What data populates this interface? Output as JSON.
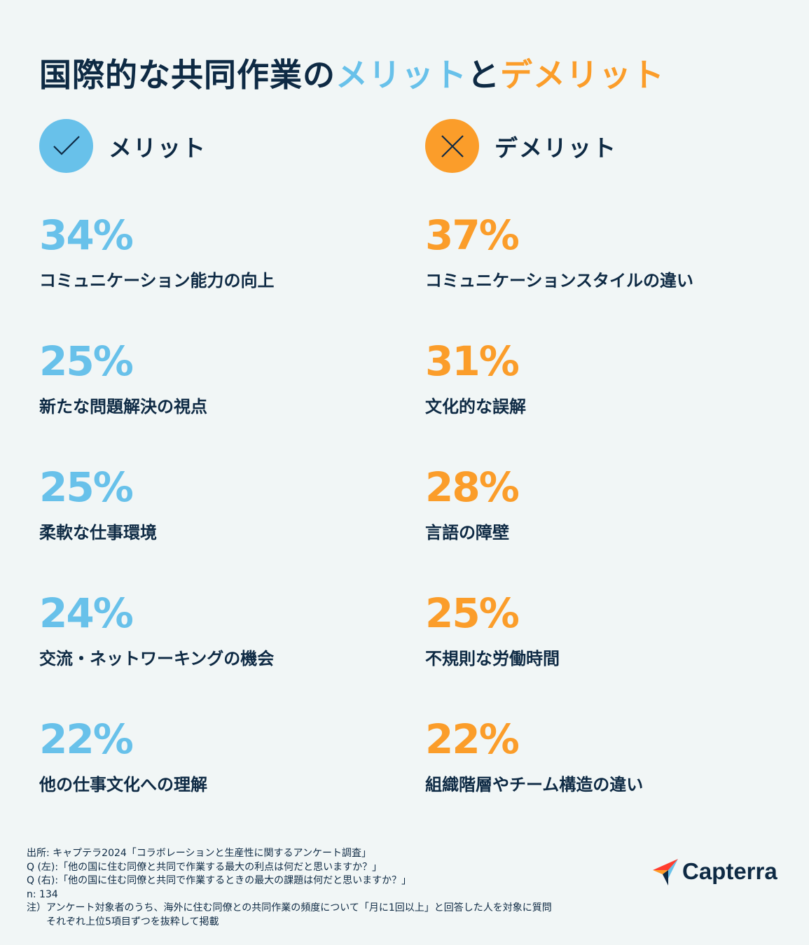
{
  "title": {
    "prefix": "国際的な共同作業の",
    "pros_word": "メリット",
    "connector": "と",
    "cons_word": "デメリット"
  },
  "colors": {
    "pros": "#68c1ea",
    "cons": "#fb9d2a",
    "text": "#0e2a44",
    "background": "#f1f6f6"
  },
  "pros": {
    "heading": "メリット",
    "icon": "check-icon"
  },
  "cons": {
    "heading": "デメリット",
    "icon": "x-icon"
  },
  "chart_data": {
    "type": "table",
    "unit": "%",
    "series": [
      {
        "name": "メリット",
        "items": [
          {
            "value": 34,
            "label": "34%",
            "category": "コミュニケーション能力の向上"
          },
          {
            "value": 25,
            "label": "25%",
            "category": "新たな問題解決の視点"
          },
          {
            "value": 25,
            "label": "25%",
            "category": "柔軟な仕事環境"
          },
          {
            "value": 24,
            "label": "24%",
            "category": "交流・ネットワーキングの機会"
          },
          {
            "value": 22,
            "label": "22%",
            "category": "他の仕事文化への理解"
          }
        ]
      },
      {
        "name": "デメリット",
        "items": [
          {
            "value": 37,
            "label": "37%",
            "category": "コミュニケーションスタイルの違い"
          },
          {
            "value": 31,
            "label": "31%",
            "category": "文化的な誤解"
          },
          {
            "value": 28,
            "label": "28%",
            "category": "言語の障壁"
          },
          {
            "value": 25,
            "label": "25%",
            "category": "不規則な労働時間"
          },
          {
            "value": 22,
            "label": "22%",
            "category": "組織階層やチーム構造の違い"
          }
        ]
      }
    ]
  },
  "footnote": {
    "lines": [
      "出所: キャプテラ2024「コラボレーションと生産性に関するアンケート調査」",
      "Q (左):「他の国に住む同僚と共同で作業する最大の利点は何だと思いますか？」",
      "Q (右):「他の国に住む同僚と共同で作業するときの最大の課題は何だと思いますか？」",
      "n: 134",
      "注）アンケート対象者のうち、海外に住む同僚との共同作業の頻度について「月に1回以上」と回答した人を対象に質問",
      "それぞれ上位5項目ずつを抜粋して掲載"
    ]
  },
  "logo": {
    "text": "Capterra",
    "icon": "capterra-arrow-logo-icon"
  }
}
